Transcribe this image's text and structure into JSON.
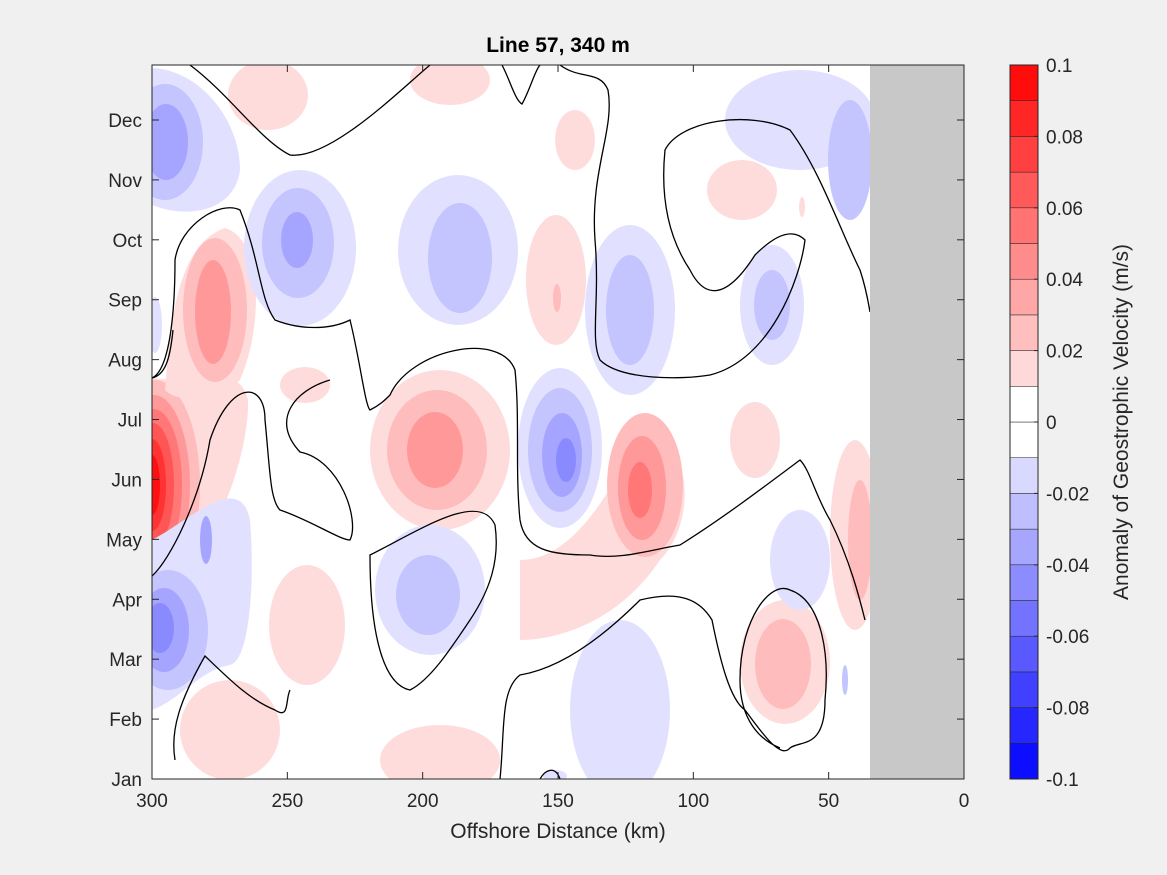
{
  "chart_data": {
    "type": "heatmap",
    "title": "Line 57, 340 m",
    "xlabel": "Offshore Distance (km)",
    "ylabel": "",
    "xlim": [
      300,
      0
    ],
    "x_reversed": true,
    "xticks": [
      300,
      250,
      200,
      150,
      100,
      50,
      0
    ],
    "yticks": [
      "Jan",
      "Feb",
      "Mar",
      "Apr",
      "May",
      "Jun",
      "Jul",
      "Aug",
      "Sep",
      "Oct",
      "Nov",
      "Dec"
    ],
    "colorbar": {
      "label": "Anomaly of Geostrophic Velocity (m/s)",
      "range": [
        -0.1,
        0.1
      ],
      "level_step": 0.01,
      "tick_labels": [
        "-0.1",
        "-0.08",
        "-0.06",
        "-0.04",
        "-0.02",
        "0",
        "0.02",
        "0.04",
        "0.06",
        "0.08",
        "0.1"
      ],
      "colormap": "blue-white-red",
      "negative_color": "#0000ff",
      "positive_color": "#ff0000",
      "zero_color": "#ffffff"
    },
    "zero_contour": true,
    "no_data_region": {
      "x_range": [
        35,
        0
      ],
      "color": "#c8c8c8"
    },
    "features": [
      {
        "sign": "positive",
        "x_km": 298,
        "month": 5.9,
        "peak": 0.1
      },
      {
        "sign": "positive",
        "x_km": 275,
        "month": 8.9,
        "peak": 0.05
      },
      {
        "sign": "negative",
        "x_km": 297,
        "month": 11.7,
        "peak": -0.05
      },
      {
        "sign": "negative",
        "x_km": 298,
        "month": 3.2,
        "peak": -0.06
      },
      {
        "sign": "negative",
        "x_km": 243,
        "month": 9.9,
        "peak": -0.04
      },
      {
        "sign": "negative",
        "x_km": 187,
        "month": 9.2,
        "peak": -0.03
      },
      {
        "sign": "positive",
        "x_km": 195,
        "month": 6.3,
        "peak": 0.04
      },
      {
        "sign": "negative",
        "x_km": 146,
        "month": 6.2,
        "peak": -0.05
      },
      {
        "sign": "positive",
        "x_km": 120,
        "month": 5.9,
        "peak": 0.05
      },
      {
        "sign": "negative",
        "x_km": 195,
        "month": 3.8,
        "peak": -0.04
      },
      {
        "sign": "negative",
        "x_km": 123,
        "month": 8.7,
        "peak": -0.04
      },
      {
        "sign": "negative",
        "x_km": 70,
        "month": 8.9,
        "peak": -0.04
      },
      {
        "sign": "positive",
        "x_km": 68,
        "month": 2.9,
        "peak": 0.03
      },
      {
        "sign": "positive",
        "x_km": 40,
        "month": 4.7,
        "peak": 0.03
      }
    ]
  }
}
